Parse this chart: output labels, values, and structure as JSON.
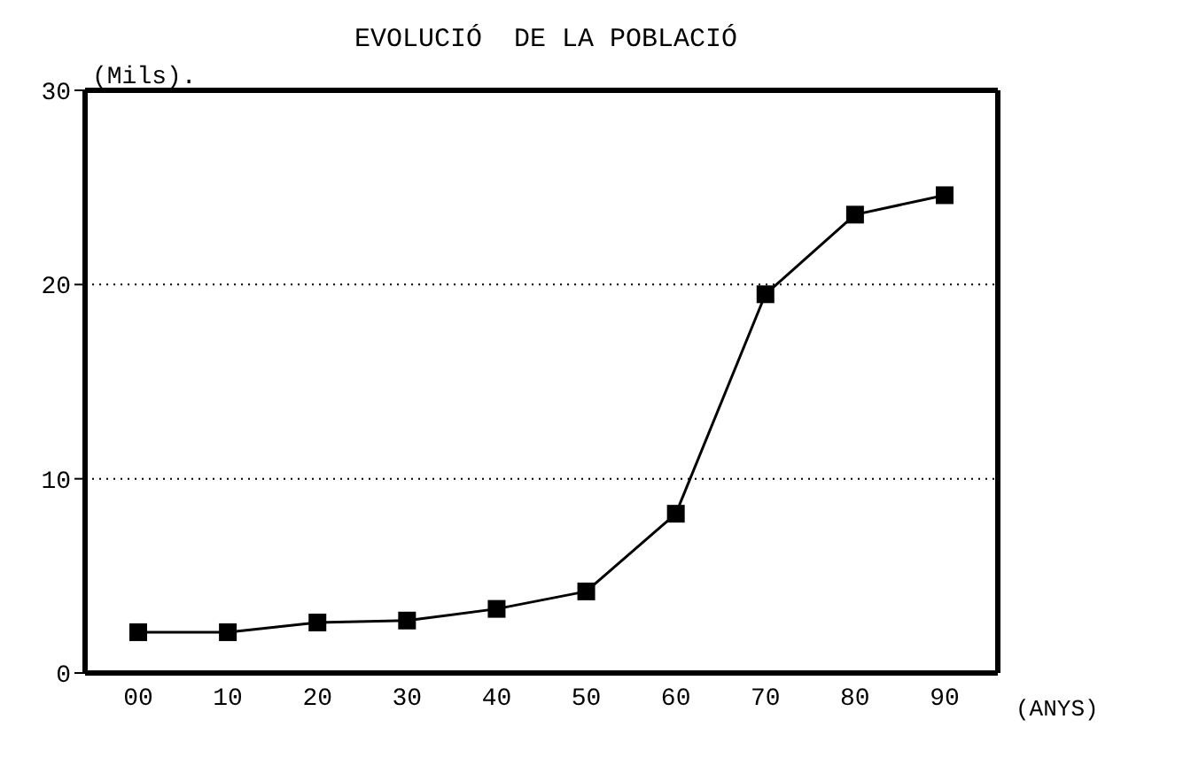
{
  "chart_data": {
    "type": "line",
    "title": "EVOLUCIÓ  DE LA POBLACIÓ",
    "ylabel": "(Mils).",
    "xlabel": "(ANYS)",
    "categories": [
      "00",
      "10",
      "20",
      "30",
      "40",
      "50",
      "60",
      "70",
      "80",
      "90"
    ],
    "series": [
      {
        "color": "#000000",
        "values": [
          2.1,
          2.1,
          2.6,
          2.7,
          3.3,
          4.2,
          8.2,
          19.5,
          23.6,
          24.6
        ]
      }
    ],
    "ylim": [
      0,
      30
    ],
    "yticks": [
      0,
      10,
      20,
      30
    ],
    "grid": "y",
    "marker": "square",
    "line_style": "solid"
  }
}
